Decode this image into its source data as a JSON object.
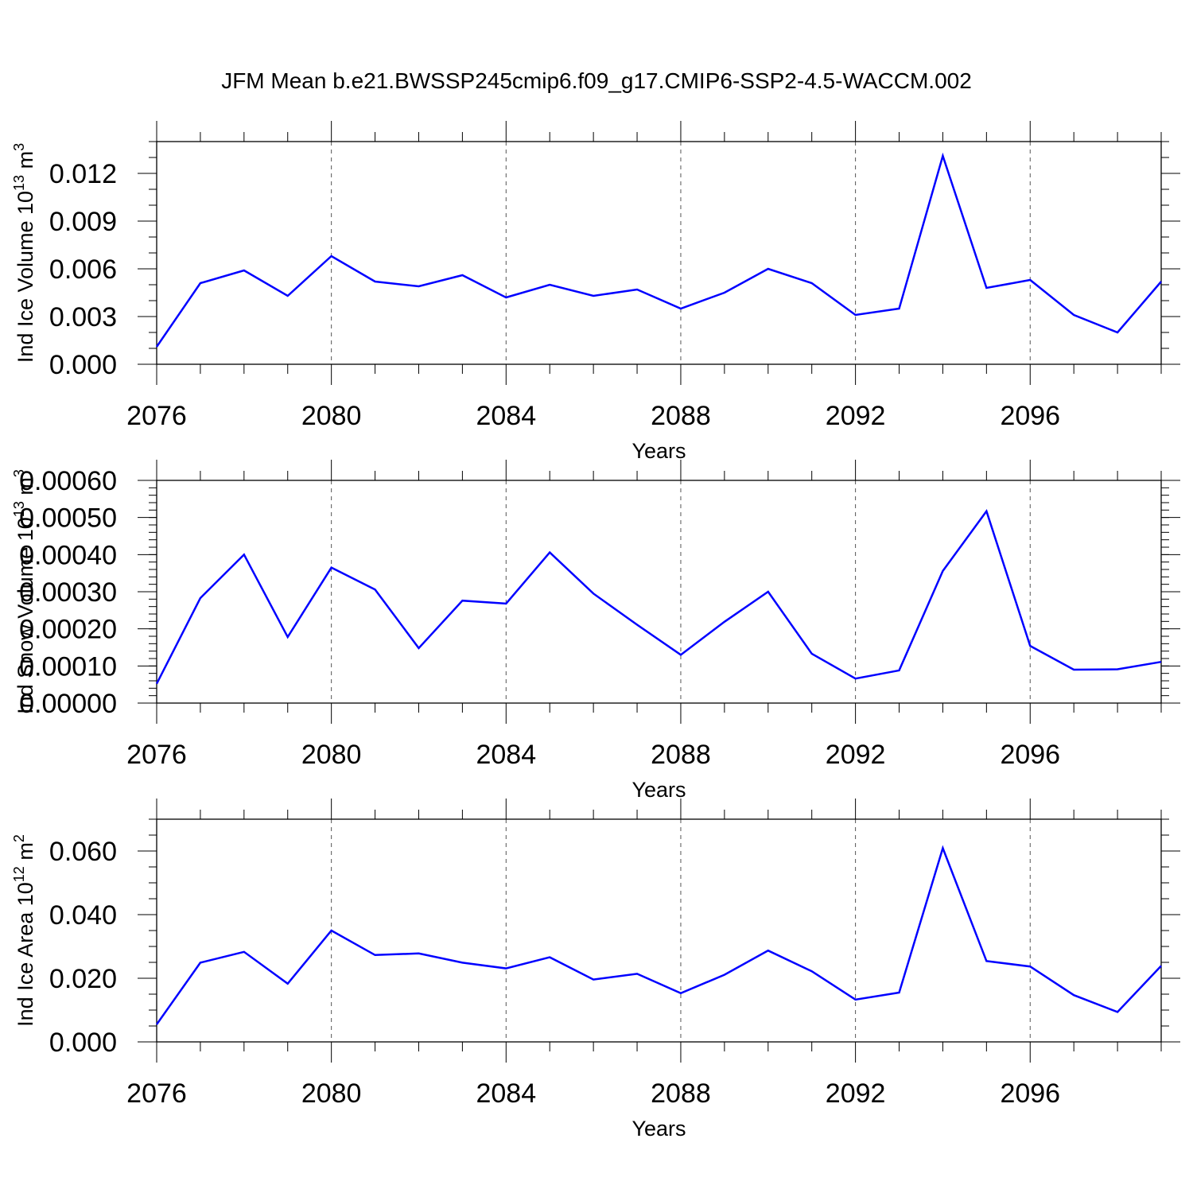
{
  "title": "JFM Mean b.e21.BWSSP245cmip6.f09_g17.CMIP6-SSP2-4.5-WACCM.002",
  "colors": {
    "line": "#0000ff",
    "frame": "#000000",
    "grid": "#555555"
  },
  "chart_data": [
    {
      "type": "line",
      "title": "",
      "xlabel": "Years",
      "ylabel": "Ind Ice Volume 10",
      "ylabel_exponent": "13",
      "ylabel_unit": " m",
      "ylabel_unit_exponent": "3",
      "xlim": [
        2076,
        2099
      ],
      "ylim": [
        0,
        0.014
      ],
      "x_ticks": [
        2076,
        2080,
        2084,
        2088,
        2092,
        2096
      ],
      "y_ticks": [
        0.0,
        0.003,
        0.006,
        0.009,
        0.012
      ],
      "y_tick_labels": [
        "0.000",
        "0.003",
        "0.006",
        "0.009",
        "0.012"
      ],
      "y_minor_step": 0.001,
      "grid": "dashed vertical lines at major x ticks",
      "x": [
        2076,
        2077,
        2078,
        2079,
        2080,
        2081,
        2082,
        2083,
        2084,
        2085,
        2086,
        2087,
        2088,
        2089,
        2090,
        2091,
        2092,
        2093,
        2094,
        2095,
        2096,
        2097,
        2098,
        2099
      ],
      "values": [
        0.0011,
        0.0051,
        0.0059,
        0.0043,
        0.0068,
        0.0052,
        0.0049,
        0.0056,
        0.0042,
        0.005,
        0.0043,
        0.0047,
        0.0035,
        0.0045,
        0.006,
        0.0051,
        0.0031,
        0.0035,
        0.0131,
        0.0048,
        0.0053,
        0.0031,
        0.002,
        0.0052
      ]
    },
    {
      "type": "line",
      "title": "",
      "xlabel": "Years",
      "ylabel": "Ind Snow Volume 10",
      "ylabel_exponent": "13",
      "ylabel_unit": " m",
      "ylabel_unit_exponent": "3",
      "xlim": [
        2076,
        2099
      ],
      "ylim": [
        0,
        0.0006
      ],
      "x_ticks": [
        2076,
        2080,
        2084,
        2088,
        2092,
        2096
      ],
      "y_ticks": [
        0,
        0.0001,
        0.0002,
        0.0003,
        0.0004,
        0.0005,
        0.0006
      ],
      "y_tick_labels": [
        "0.00000",
        "0.00010",
        "0.00020",
        "0.00030",
        "0.00040",
        "0.00050",
        "0.00060"
      ],
      "y_minor_step": 2e-05,
      "grid": "dashed vertical lines at major x ticks",
      "x": [
        2076,
        2077,
        2078,
        2079,
        2080,
        2081,
        2082,
        2083,
        2084,
        2085,
        2086,
        2087,
        2088,
        2089,
        2090,
        2091,
        2092,
        2093,
        2094,
        2095,
        2096,
        2097,
        2098,
        2099
      ],
      "values": [
        5.2e-05,
        0.000283,
        0.0004,
        0.000178,
        0.000365,
        0.000306,
        0.000148,
        0.000276,
        0.000268,
        0.000406,
        0.000295,
        0.000211,
        0.00013,
        0.000219,
        0.0003,
        0.000133,
        6.6e-05,
        8.8e-05,
        0.000356,
        0.000517,
        0.000154,
        9e-05,
        9.1e-05,
        0.000111
      ]
    },
    {
      "type": "line",
      "title": "",
      "xlabel": "Years",
      "ylabel": "Ind Ice Area 10",
      "ylabel_exponent": "12",
      "ylabel_unit": " m",
      "ylabel_unit_exponent": "2",
      "xlim": [
        2076,
        2099
      ],
      "ylim": [
        0,
        0.07
      ],
      "x_ticks": [
        2076,
        2080,
        2084,
        2088,
        2092,
        2096
      ],
      "y_ticks": [
        0.0,
        0.02,
        0.04,
        0.06
      ],
      "y_tick_labels": [
        "0.000",
        "0.020",
        "0.040",
        "0.060"
      ],
      "y_minor_step": 0.005,
      "grid": "dashed vertical lines at major x ticks",
      "x": [
        2076,
        2077,
        2078,
        2079,
        2080,
        2081,
        2082,
        2083,
        2084,
        2085,
        2086,
        2087,
        2088,
        2089,
        2090,
        2091,
        2092,
        2093,
        2094,
        2095,
        2096,
        2097,
        2098,
        2099
      ],
      "values": [
        0.0055,
        0.0249,
        0.0283,
        0.0183,
        0.035,
        0.0273,
        0.0278,
        0.0249,
        0.0231,
        0.0266,
        0.0196,
        0.0214,
        0.0153,
        0.0211,
        0.0287,
        0.0222,
        0.0133,
        0.0155,
        0.0609,
        0.0254,
        0.0237,
        0.0147,
        0.0094,
        0.0239
      ]
    }
  ]
}
